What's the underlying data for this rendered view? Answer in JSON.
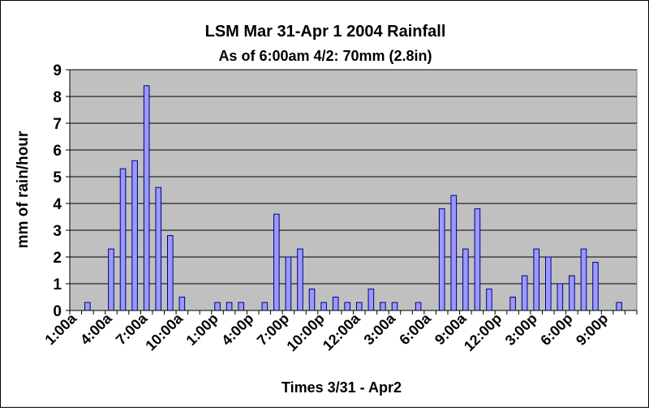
{
  "chart_data": {
    "type": "bar",
    "title": "LSM Mar 31-Apr 1 2004 Rainfall",
    "subtitle": "As of 6:00am 4/2: 70mm (2.8in)",
    "xlabel": "Times 3/31 - Apr2",
    "ylabel": "mm of rain/hour",
    "ylim": [
      0,
      9
    ],
    "yticks": [
      0,
      1,
      2,
      3,
      4,
      5,
      6,
      7,
      8,
      9
    ],
    "grid": true,
    "legend": "none",
    "colors": {
      "plot_bg": "#c0c0c0",
      "bar_fill": "#9999ff",
      "bar_stroke": "#000080",
      "grid": "#000000"
    },
    "x_tick_labels": [
      "1:00a",
      "4:00a",
      "7:00a",
      "10:00a",
      "1:00p",
      "4:00p",
      "7:00p",
      "10:00p",
      "12:00a",
      "3:00a",
      "6:00a",
      "9:00a",
      "12:00p",
      "3:00p",
      "6:00p",
      "9:00p"
    ],
    "values": [
      0,
      0.3,
      0,
      2.3,
      5.3,
      5.6,
      8.4,
      4.6,
      2.8,
      0.5,
      0,
      0,
      0.3,
      0.3,
      0.3,
      0,
      0.3,
      3.6,
      2.0,
      2.3,
      0.8,
      0.3,
      0.5,
      0.3,
      0.3,
      0.8,
      0.3,
      0.3,
      0,
      0.3,
      0,
      3.8,
      4.3,
      2.3,
      3.8,
      0.8,
      0,
      0.5,
      1.3,
      2.3,
      2.0,
      1.0,
      1.3,
      2.3,
      1.8,
      0,
      0.3,
      0
    ]
  }
}
